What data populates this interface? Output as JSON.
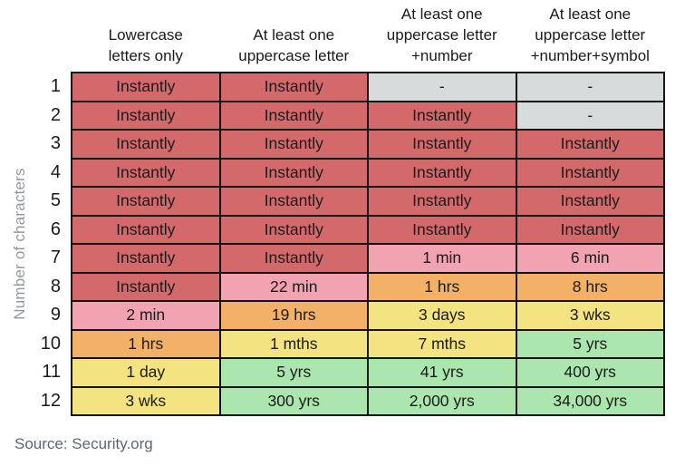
{
  "chart_data": {
    "type": "table",
    "ylabel": "Number of characters",
    "source": "Source: Security.org",
    "columns": [
      "Lowercase\nletters only",
      "At least one\nuppercase letter",
      "At least one\nuppercase letter\n+number",
      "At least one\nuppercase letter\n+number+symbol"
    ],
    "rows": [
      {
        "chars": 1,
        "cells": [
          {
            "text": "Instantly",
            "level": "red"
          },
          {
            "text": "Instantly",
            "level": "red"
          },
          {
            "text": "-",
            "level": "gray"
          },
          {
            "text": "-",
            "level": "gray"
          }
        ]
      },
      {
        "chars": 2,
        "cells": [
          {
            "text": "Instantly",
            "level": "red"
          },
          {
            "text": "Instantly",
            "level": "red"
          },
          {
            "text": "Instantly",
            "level": "red"
          },
          {
            "text": "-",
            "level": "gray"
          }
        ]
      },
      {
        "chars": 3,
        "cells": [
          {
            "text": "Instantly",
            "level": "red"
          },
          {
            "text": "Instantly",
            "level": "red"
          },
          {
            "text": "Instantly",
            "level": "red"
          },
          {
            "text": "Instantly",
            "level": "red"
          }
        ]
      },
      {
        "chars": 4,
        "cells": [
          {
            "text": "Instantly",
            "level": "red"
          },
          {
            "text": "Instantly",
            "level": "red"
          },
          {
            "text": "Instantly",
            "level": "red"
          },
          {
            "text": "Instantly",
            "level": "red"
          }
        ]
      },
      {
        "chars": 5,
        "cells": [
          {
            "text": "Instantly",
            "level": "red"
          },
          {
            "text": "Instantly",
            "level": "red"
          },
          {
            "text": "Instantly",
            "level": "red"
          },
          {
            "text": "Instantly",
            "level": "red"
          }
        ]
      },
      {
        "chars": 6,
        "cells": [
          {
            "text": "Instantly",
            "level": "red"
          },
          {
            "text": "Instantly",
            "level": "red"
          },
          {
            "text": "Instantly",
            "level": "red"
          },
          {
            "text": "Instantly",
            "level": "red"
          }
        ]
      },
      {
        "chars": 7,
        "cells": [
          {
            "text": "Instantly",
            "level": "red"
          },
          {
            "text": "Instantly",
            "level": "red"
          },
          {
            "text": "1 min",
            "level": "pink"
          },
          {
            "text": "6 min",
            "level": "pink"
          }
        ]
      },
      {
        "chars": 8,
        "cells": [
          {
            "text": "Instantly",
            "level": "red"
          },
          {
            "text": "22 min",
            "level": "pink"
          },
          {
            "text": "1 hrs",
            "level": "orange"
          },
          {
            "text": "8 hrs",
            "level": "orange"
          }
        ]
      },
      {
        "chars": 9,
        "cells": [
          {
            "text": "2 min",
            "level": "pink"
          },
          {
            "text": "19 hrs",
            "level": "orange"
          },
          {
            "text": "3 days",
            "level": "yellow"
          },
          {
            "text": "3 wks",
            "level": "yellow"
          }
        ]
      },
      {
        "chars": 10,
        "cells": [
          {
            "text": "1 hrs",
            "level": "orange"
          },
          {
            "text": "1 mths",
            "level": "yellow"
          },
          {
            "text": "7 mths",
            "level": "yellow"
          },
          {
            "text": "5 yrs",
            "level": "green"
          }
        ]
      },
      {
        "chars": 11,
        "cells": [
          {
            "text": "1 day",
            "level": "yellow"
          },
          {
            "text": "5 yrs",
            "level": "green"
          },
          {
            "text": "41 yrs",
            "level": "green"
          },
          {
            "text": "400 yrs",
            "level": "green"
          }
        ]
      },
      {
        "chars": 12,
        "cells": [
          {
            "text": "3 wks",
            "level": "yellow"
          },
          {
            "text": "300 yrs",
            "level": "green"
          },
          {
            "text": "2,000 yrs",
            "level": "green"
          },
          {
            "text": "34,000 yrs",
            "level": "green"
          }
        ]
      }
    ]
  },
  "colors": {
    "red": "#d4696c",
    "pink": "#f1a3b2",
    "orange": "#f2b167",
    "yellow": "#f3e381",
    "green": "#aae6ae",
    "gray": "#d8dbdc",
    "border": "#141414",
    "cell_text": "#1a1a1a",
    "axis_label": "#94989c",
    "source_text": "#5b6770"
  }
}
